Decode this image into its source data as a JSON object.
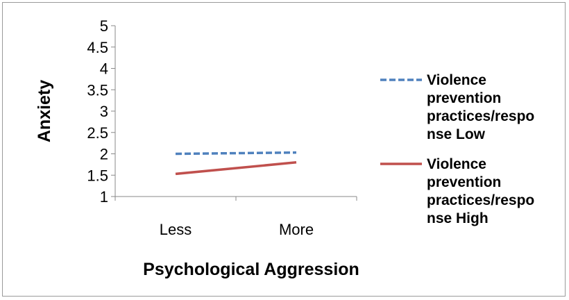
{
  "chart_data": {
    "type": "line",
    "categories": [
      "Less",
      "More"
    ],
    "series": [
      {
        "name_lines": [
          "Violence",
          "prevention",
          "practices/respo",
          "nse Low"
        ],
        "values": [
          2.0,
          2.03
        ],
        "color": "#4f81bd",
        "dash": "dashed"
      },
      {
        "name_lines": [
          "Violence",
          "prevention",
          "practices/respo",
          "nse High"
        ],
        "values": [
          1.53,
          1.8
        ],
        "color": "#c0504d",
        "dash": "solid"
      }
    ],
    "yticks": [
      "1",
      "1.5",
      "2",
      "2.5",
      "3",
      "3.5",
      "4",
      "4.5",
      "5"
    ],
    "ylim": [
      1,
      5
    ],
    "xlabel": "Psychological Aggression",
    "ylabel": "Anxiety",
    "legend_position": "right",
    "grid": false
  }
}
